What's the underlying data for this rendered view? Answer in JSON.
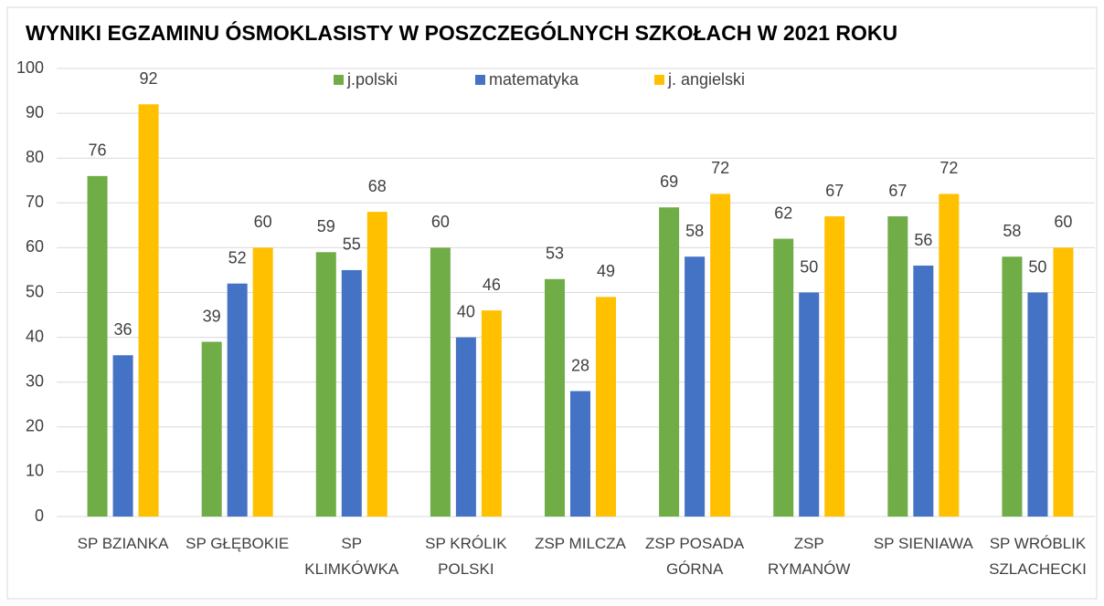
{
  "chart_data": {
    "type": "bar",
    "title": "WYNIKI EGZAMINU ÓSMOKLASISTY W POSZCZEGÓLNYCH SZKOŁACH W 2021 ROKU",
    "categories": [
      "SP BZIANKA",
      "SP GŁĘBOKIE",
      "SP KLIMKÓWKA",
      "SP KRÓLIK POLSKI",
      "ZSP MILCZA",
      "ZSP POSADA GÓRNA",
      "ZSP RYMANÓW",
      "SP SIENIAWA",
      "SP WRÓBLIK SZLACHECKI"
    ],
    "series": [
      {
        "name": "j.polski",
        "color": "#70ad47",
        "values": [
          76,
          39,
          59,
          60,
          53,
          69,
          62,
          67,
          58
        ]
      },
      {
        "name": "matematyka",
        "color": "#4472c4",
        "values": [
          36,
          52,
          55,
          40,
          28,
          58,
          50,
          56,
          50
        ]
      },
      {
        "name": "j. angielski",
        "color": "#ffc000",
        "values": [
          92,
          60,
          68,
          46,
          49,
          72,
          67,
          72,
          60
        ]
      }
    ],
    "ylim": [
      0,
      100
    ],
    "yticks": [
      0,
      10,
      20,
      30,
      40,
      50,
      60,
      70,
      80,
      90,
      100
    ],
    "grid": true,
    "legend": "top"
  }
}
